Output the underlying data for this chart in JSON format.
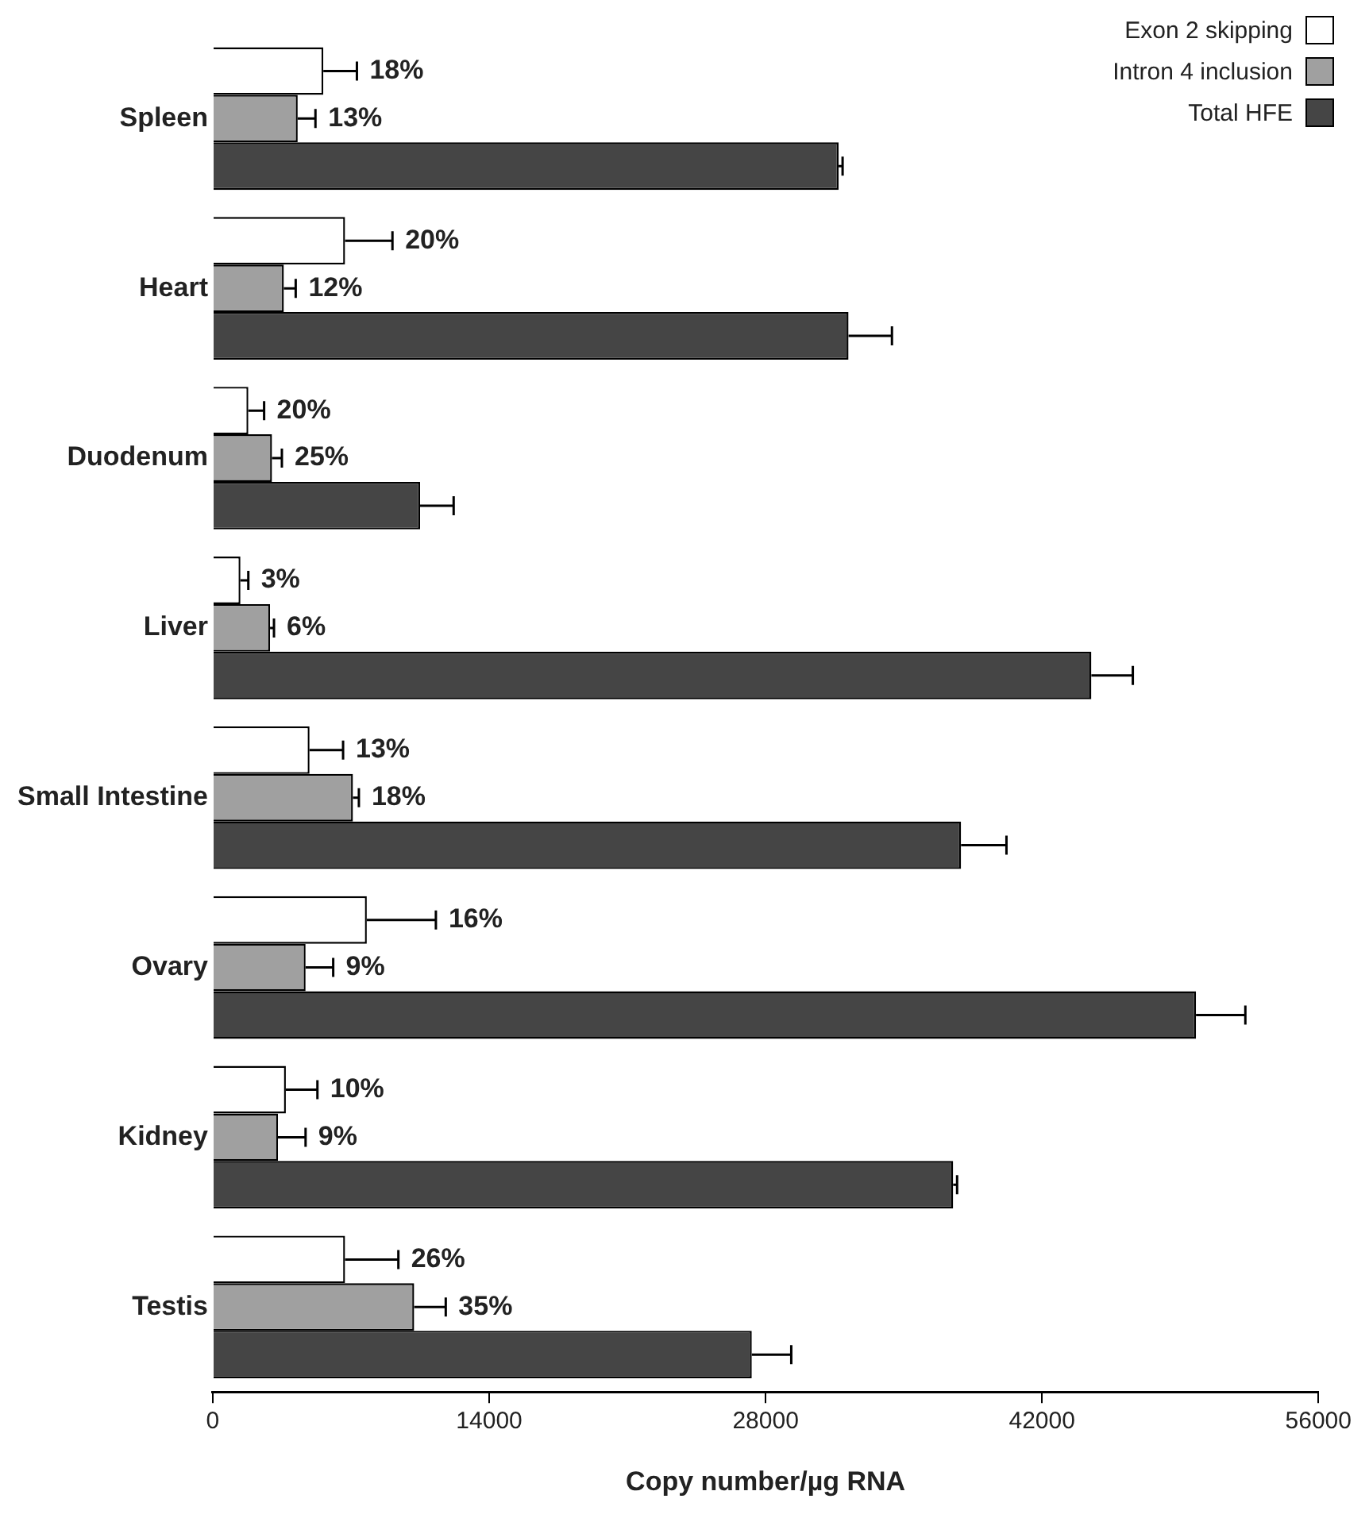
{
  "chart_data": {
    "type": "bar",
    "orientation": "horizontal",
    "xlabel": "Copy number/µg RNA",
    "categories": [
      "Spleen",
      "Heart",
      "Duodenum",
      "Liver",
      "Small Intestine",
      "Ovary",
      "Kidney",
      "Testis"
    ],
    "series": [
      {
        "name": "Exon 2 skipping",
        "color": "#ffffff",
        "values": [
          5600,
          6700,
          1800,
          1400,
          4900,
          7800,
          3700,
          6700
        ],
        "errors": [
          1700,
          2400,
          800,
          400,
          1700,
          3500,
          1600,
          2700
        ]
      },
      {
        "name": "Intron 4 inclusion",
        "color": "#a0a0a0",
        "values": [
          4300,
          3600,
          3000,
          2900,
          7100,
          4700,
          3300,
          10200
        ],
        "errors": [
          900,
          600,
          500,
          200,
          300,
          1400,
          1400,
          1600
        ]
      },
      {
        "name": "Total HFE",
        "color": "#454545",
        "values": [
          31700,
          32200,
          10500,
          44500,
          37900,
          49800,
          37500,
          27300
        ],
        "errors": [
          200,
          2200,
          1700,
          2100,
          2300,
          2500,
          200,
          2000
        ]
      }
    ],
    "annotations": [
      "18%",
      "13%",
      "20%",
      "12%",
      "20%",
      "25%",
      "3%",
      "6%",
      "13%",
      "18%",
      "16%",
      "9%",
      "10%",
      "9%",
      "26%",
      "35%"
    ],
    "xlim": [
      0,
      56000
    ],
    "xticks": [
      0,
      14000,
      28000,
      42000,
      56000
    ],
    "grid": false,
    "legend": "top right"
  }
}
